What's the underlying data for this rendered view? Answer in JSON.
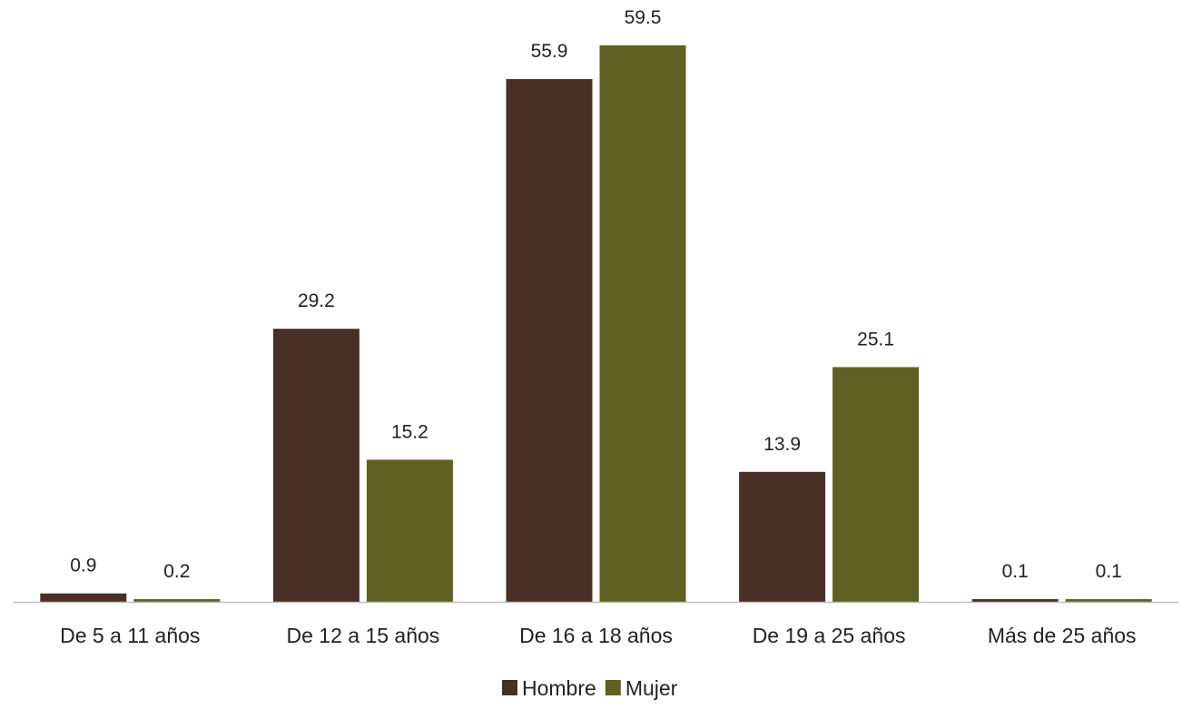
{
  "chart_data": {
    "type": "bar",
    "title": "",
    "xlabel": "",
    "ylabel": "",
    "categories": [
      "De 5 a 11 años",
      "De 12 a 15 años",
      "De 16 a 18 años",
      "De 19 a 25 años",
      "Más de 25 años"
    ],
    "series": [
      {
        "name": "Hombre",
        "color": "#4a2f27",
        "values": [
          0.9,
          29.2,
          55.9,
          13.9,
          0.1
        ]
      },
      {
        "name": "Mujer",
        "color": "#5e6121",
        "values": [
          0.2,
          15.2,
          59.5,
          25.1,
          0.1
        ]
      }
    ],
    "ylim": [
      0,
      59.5
    ],
    "grid": false,
    "data_labels": true,
    "legend_position": "bottom"
  }
}
